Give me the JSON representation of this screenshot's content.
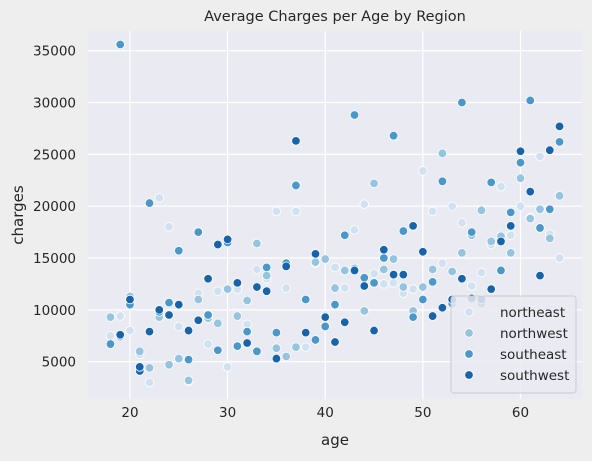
{
  "chart_data": {
    "type": "scatter",
    "title": "Average Charges per Age by Region",
    "xlabel": "age",
    "ylabel": "charges",
    "xlim": [
      15.7,
      66.3
    ],
    "ylim": [
      1400,
      36900
    ],
    "xticks": [
      20,
      30,
      40,
      50,
      60
    ],
    "yticks": [
      5000,
      10000,
      15000,
      20000,
      25000,
      30000,
      35000
    ],
    "grid": true,
    "legend_position": "lower right",
    "series": [
      {
        "name": "northeast",
        "color": "#d0e1f2",
        "points": [
          [
            18,
            7500
          ],
          [
            19,
            9400
          ],
          [
            20,
            8000
          ],
          [
            21,
            5700
          ],
          [
            22,
            3000
          ],
          [
            23,
            20800
          ],
          [
            24,
            18000
          ],
          [
            25,
            8400
          ],
          [
            26,
            3100
          ],
          [
            27,
            11600
          ],
          [
            28,
            6700
          ],
          [
            29,
            11800
          ],
          [
            30,
            4500
          ],
          [
            31,
            12000
          ],
          [
            32,
            8600
          ],
          [
            33,
            13900
          ],
          [
            34,
            13000
          ],
          [
            35,
            19500
          ],
          [
            36,
            12100
          ],
          [
            37,
            19500
          ],
          [
            38,
            6400
          ],
          [
            39,
            14500
          ],
          [
            40,
            9500
          ],
          [
            41,
            14100
          ],
          [
            42,
            12100
          ],
          [
            43,
            17700
          ],
          [
            44,
            20200
          ],
          [
            45,
            13500
          ],
          [
            46,
            12500
          ],
          [
            47,
            12600
          ],
          [
            48,
            11600
          ],
          [
            49,
            12000
          ],
          [
            50,
            23400
          ],
          [
            51,
            19500
          ],
          [
            52,
            14500
          ],
          [
            53,
            20000
          ],
          [
            54,
            18400
          ],
          [
            55,
            12300
          ],
          [
            56,
            13600
          ],
          [
            57,
            16300
          ],
          [
            58,
            21900
          ],
          [
            59,
            17200
          ],
          [
            60,
            20000
          ],
          [
            61,
            18900
          ],
          [
            62,
            24800
          ],
          [
            63,
            17300
          ],
          [
            64,
            15000
          ]
        ]
      },
      {
        "name": "northwest",
        "color": "#94c4df",
        "points": [
          [
            18,
            9300
          ],
          [
            19,
            7400
          ],
          [
            20,
            11300
          ],
          [
            21,
            6000
          ],
          [
            22,
            4400
          ],
          [
            23,
            9300
          ],
          [
            24,
            4700
          ],
          [
            25,
            5300
          ],
          [
            26,
            3200
          ],
          [
            27,
            11000
          ],
          [
            28,
            9200
          ],
          [
            29,
            8700
          ],
          [
            30,
            12000
          ],
          [
            31,
            9400
          ],
          [
            32,
            10900
          ],
          [
            33,
            16400
          ],
          [
            34,
            13300
          ],
          [
            35,
            6300
          ],
          [
            36,
            5500
          ],
          [
            37,
            6400
          ],
          [
            38,
            11000
          ],
          [
            39,
            14600
          ],
          [
            40,
            14900
          ],
          [
            41,
            12100
          ],
          [
            42,
            13800
          ],
          [
            43,
            14000
          ],
          [
            44,
            9900
          ],
          [
            45,
            22200
          ],
          [
            46,
            13900
          ],
          [
            47,
            14900
          ],
          [
            48,
            12200
          ],
          [
            49,
            9900
          ],
          [
            50,
            12200
          ],
          [
            51,
            13900
          ],
          [
            52,
            25100
          ],
          [
            53,
            13700
          ],
          [
            54,
            15500
          ],
          [
            55,
            17200
          ],
          [
            56,
            19600
          ],
          [
            57,
            16600
          ],
          [
            58,
            17100
          ],
          [
            59,
            15500
          ],
          [
            60,
            22700
          ],
          [
            61,
            18800
          ],
          [
            62,
            19700
          ],
          [
            63,
            16900
          ],
          [
            64,
            21000
          ]
        ]
      },
      {
        "name": "southeast",
        "color": "#4a98c9",
        "points": [
          [
            18,
            6700
          ],
          [
            19,
            35600
          ],
          [
            20,
            10500
          ],
          [
            22,
            20300
          ],
          [
            23,
            9800
          ],
          [
            24,
            10700
          ],
          [
            25,
            15700
          ],
          [
            26,
            5200
          ],
          [
            27,
            17500
          ],
          [
            28,
            9500
          ],
          [
            29,
            6100
          ],
          [
            30,
            16500
          ],
          [
            31,
            6500
          ],
          [
            32,
            7900
          ],
          [
            33,
            6000
          ],
          [
            34,
            14100
          ],
          [
            35,
            7800
          ],
          [
            36,
            14500
          ],
          [
            37,
            22000
          ],
          [
            38,
            11000
          ],
          [
            39,
            7100
          ],
          [
            40,
            8400
          ],
          [
            41,
            10500
          ],
          [
            42,
            17200
          ],
          [
            43,
            28800
          ],
          [
            44,
            13100
          ],
          [
            45,
            12600
          ],
          [
            46,
            15000
          ],
          [
            47,
            26800
          ],
          [
            48,
            17600
          ],
          [
            49,
            9300
          ],
          [
            50,
            11000
          ],
          [
            51,
            12700
          ],
          [
            52,
            22400
          ],
          [
            53,
            10600
          ],
          [
            54,
            30000
          ],
          [
            55,
            17500
          ],
          [
            56,
            10600
          ],
          [
            57,
            22300
          ],
          [
            58,
            13800
          ],
          [
            59,
            19400
          ],
          [
            60,
            24200
          ],
          [
            61,
            30200
          ],
          [
            62,
            17900
          ],
          [
            63,
            19700
          ],
          [
            64,
            26200
          ]
        ]
      },
      {
        "name": "southwest",
        "color": "#1764ab",
        "points": [
          [
            19,
            7600
          ],
          [
            20,
            11000
          ],
          [
            21,
            4100
          ],
          [
            21,
            4500
          ],
          [
            22,
            7900
          ],
          [
            23,
            10000
          ],
          [
            24,
            9500
          ],
          [
            25,
            10500
          ],
          [
            26,
            8000
          ],
          [
            27,
            9000
          ],
          [
            28,
            13000
          ],
          [
            29,
            16300
          ],
          [
            30,
            16800
          ],
          [
            31,
            12600
          ],
          [
            32,
            6800
          ],
          [
            33,
            12200
          ],
          [
            34,
            11800
          ],
          [
            35,
            5300
          ],
          [
            36,
            14200
          ],
          [
            37,
            26300
          ],
          [
            38,
            7800
          ],
          [
            39,
            15400
          ],
          [
            40,
            9300
          ],
          [
            41,
            6900
          ],
          [
            42,
            8800
          ],
          [
            43,
            13800
          ],
          [
            44,
            12300
          ],
          [
            45,
            8000
          ],
          [
            46,
            15800
          ],
          [
            47,
            13400
          ],
          [
            48,
            13400
          ],
          [
            49,
            18100
          ],
          [
            50,
            15600
          ],
          [
            51,
            9400
          ],
          [
            52,
            10200
          ],
          [
            53,
            11000
          ],
          [
            54,
            13000
          ],
          [
            55,
            11100
          ],
          [
            56,
            11000
          ],
          [
            57,
            12000
          ],
          [
            58,
            16600
          ],
          [
            59,
            18100
          ],
          [
            60,
            25300
          ],
          [
            61,
            21400
          ],
          [
            62,
            13300
          ],
          [
            63,
            25400
          ],
          [
            64,
            27700
          ]
        ]
      }
    ]
  }
}
